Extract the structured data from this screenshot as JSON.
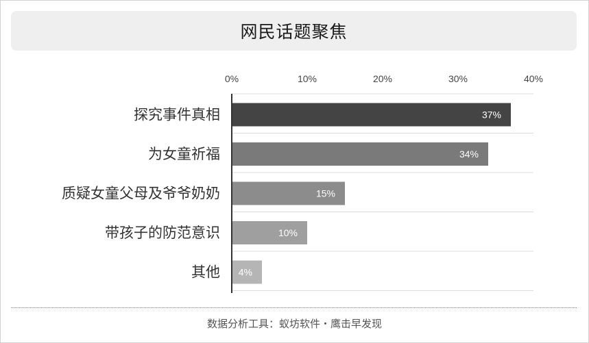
{
  "colors": {
    "title_bg": "#efefef",
    "axis": "#333333",
    "grid": "#dcdcdc",
    "label_text": "#333333",
    "tick_text": "#444444",
    "value_text": "#ffffff"
  },
  "chart_data": {
    "type": "bar",
    "orientation": "horizontal",
    "title": "网民话题聚焦",
    "xlabel": "",
    "ylabel": "",
    "xlim": [
      0,
      40
    ],
    "ticks": [
      "0%",
      "10%",
      "20%",
      "30%",
      "40%"
    ],
    "tick_values": [
      0,
      10,
      20,
      30,
      40
    ],
    "grid": true,
    "categories": [
      "探究事件真相",
      "为女童祈福",
      "质疑女童父母及爷爷奶奶",
      "带孩子的防范意识",
      "其他"
    ],
    "values": [
      37,
      34,
      15,
      10,
      4
    ],
    "value_labels": [
      "37%",
      "34%",
      "15%",
      "10%",
      "4%"
    ],
    "bar_colors": [
      "#444444",
      "#7a7a7a",
      "#8c8c8c",
      "#9f9f9f",
      "#b5b5b5"
    ]
  },
  "footer": "数据分析工具：蚁坊软件・鹰击早发现"
}
